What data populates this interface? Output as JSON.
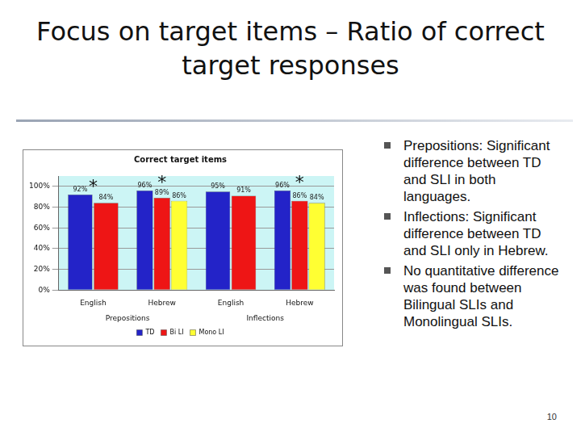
{
  "slide": {
    "title": "Focus on target items – Ratio of correct target responses",
    "bullets": [
      "Prepositions: Significant difference between TD and SLI in both languages.",
      "Inflections: Significant difference between TD and SLI only in Hebrew.",
      "No quantitative difference was found between Bilingual SLIs and Monolingual SLIs."
    ],
    "page_number": 10
  },
  "chart_data": {
    "type": "bar",
    "title": "Correct target items",
    "categories": [
      "English",
      "Hebrew",
      "English",
      "Hebrew"
    ],
    "category_groups": [
      "Prepositions",
      "Prepositions",
      "Inflections",
      "Inflections"
    ],
    "series": [
      {
        "name": "TD",
        "color": "#2323c8",
        "values": [
          92,
          96,
          95,
          96
        ],
        "value_labels": [
          "92%",
          "96%",
          "95%",
          "96%"
        ]
      },
      {
        "name": "Bi LI",
        "color": "#ee1515",
        "values": [
          84,
          89,
          91,
          86
        ],
        "value_labels": [
          "84%",
          "89%",
          "91%",
          "86%"
        ]
      },
      {
        "name": "Mono LI",
        "color": "#ffff33",
        "values": [
          null,
          86,
          null,
          84
        ],
        "value_labels": [
          null,
          "86%",
          null,
          "84%"
        ]
      }
    ],
    "annotations": [
      {
        "text": "*",
        "category": 0
      },
      {
        "text": "*",
        "category": 1
      },
      {
        "text": "*",
        "category": 3
      }
    ],
    "ylim": [
      0,
      110
    ],
    "yticks": [
      {
        "value": 0,
        "label": "0%"
      },
      {
        "value": 20,
        "label": "20%"
      },
      {
        "value": 40,
        "label": "40%"
      },
      {
        "value": 60,
        "label": "60%"
      },
      {
        "value": 80,
        "label": "80%"
      },
      {
        "value": 100,
        "label": "100%"
      }
    ],
    "grid": true,
    "legend": "bottom",
    "data_labels": true
  }
}
